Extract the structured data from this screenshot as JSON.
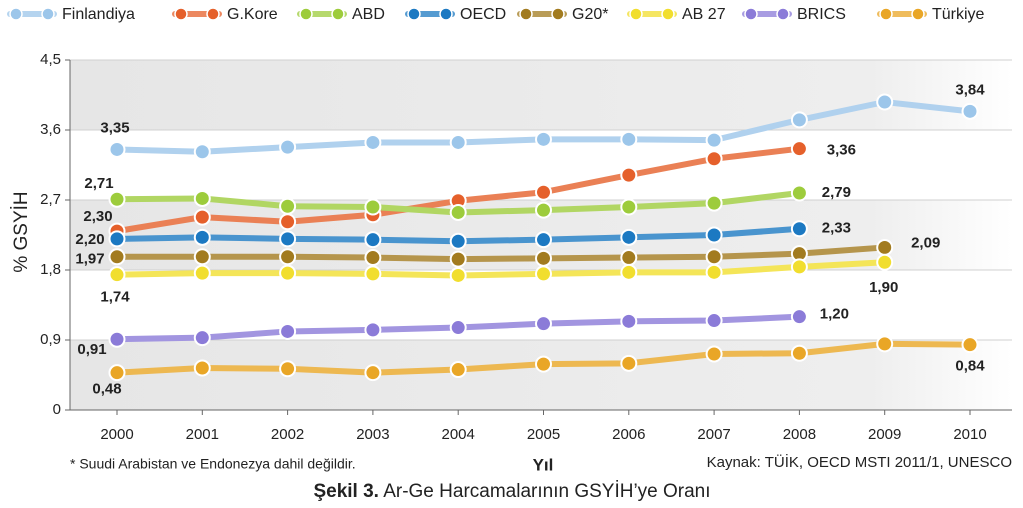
{
  "chart_data": {
    "type": "line",
    "ylabel": "% GSYİH",
    "xlabel": "Yıl",
    "footnote": "* Suudi Arabistan ve Endonezya dahil değildir.",
    "source": "Kaynak: TÜİK, OECD MSTI 2011/1, UNESCO",
    "caption_label": "Şekil 3.",
    "caption_text": "Ar-Ge Harcamalarının GSYİH’ye Oranı",
    "categories": [
      "2000",
      "2001",
      "2002",
      "2003",
      "2004",
      "2005",
      "2006",
      "2007",
      "2008",
      "2009",
      "2010"
    ],
    "ylim": [
      0,
      4.5
    ],
    "yticks": [
      {
        "value": 0,
        "label": "0"
      },
      {
        "value": 0.9,
        "label": "0,9"
      },
      {
        "value": 1.8,
        "label": "1,8"
      },
      {
        "value": 2.7,
        "label": "2,7"
      },
      {
        "value": 3.6,
        "label": "3,6"
      },
      {
        "value": 4.5,
        "label": "4,5"
      }
    ],
    "grid": true,
    "legend": "top",
    "series": [
      {
        "name": "Finlandiya",
        "color": "#9cc6ea",
        "values": [
          3.35,
          3.32,
          3.38,
          3.44,
          3.44,
          3.48,
          3.48,
          3.47,
          3.73,
          3.96,
          3.84
        ],
        "value_labels": [
          "3,35",
          null,
          null,
          null,
          null,
          null,
          null,
          null,
          null,
          null,
          "3,84"
        ]
      },
      {
        "name": "G.Kore",
        "color": "#e5602b",
        "values": [
          2.3,
          2.48,
          2.42,
          2.51,
          2.69,
          2.8,
          3.02,
          3.23,
          3.36,
          null,
          null
        ],
        "value_labels": [
          "2,30",
          null,
          null,
          null,
          null,
          null,
          null,
          null,
          "3,36",
          null,
          null
        ]
      },
      {
        "name": "ABD",
        "color": "#9dcc3c",
        "values": [
          2.71,
          2.72,
          2.62,
          2.61,
          2.54,
          2.57,
          2.61,
          2.66,
          2.79,
          null,
          null
        ],
        "value_labels": [
          "2,71",
          null,
          null,
          null,
          null,
          null,
          null,
          null,
          "2,79",
          null,
          null
        ]
      },
      {
        "name": "OECD",
        "color": "#1c79c2",
        "values": [
          2.2,
          2.22,
          2.2,
          2.19,
          2.17,
          2.19,
          2.22,
          2.25,
          2.33,
          null,
          null
        ],
        "value_labels": [
          "2,20",
          null,
          null,
          null,
          null,
          null,
          null,
          null,
          "2,33",
          null,
          null
        ]
      },
      {
        "name": "G20*",
        "color": "#a27b1f",
        "values": [
          1.97,
          1.97,
          1.97,
          1.96,
          1.94,
          1.95,
          1.96,
          1.97,
          2.01,
          2.09,
          null
        ],
        "value_labels": [
          "1,97",
          null,
          null,
          null,
          null,
          null,
          null,
          null,
          null,
          "2,09",
          null
        ]
      },
      {
        "name": "AB 27",
        "color": "#f1de2e",
        "values": [
          1.74,
          1.76,
          1.76,
          1.75,
          1.73,
          1.75,
          1.77,
          1.77,
          1.84,
          1.9,
          null
        ],
        "value_labels": [
          "1,74",
          null,
          null,
          null,
          null,
          null,
          null,
          null,
          null,
          "1,90",
          null
        ]
      },
      {
        "name": "BRICS",
        "color": "#8b7bd8",
        "values": [
          0.91,
          0.93,
          1.01,
          1.03,
          1.06,
          1.11,
          1.14,
          1.15,
          1.2,
          null,
          null
        ],
        "value_labels": [
          "0,91",
          null,
          null,
          null,
          null,
          null,
          null,
          null,
          "1,20",
          null,
          null
        ]
      },
      {
        "name": "Türkiye",
        "color": "#e9a626",
        "values": [
          0.48,
          0.54,
          0.53,
          0.48,
          0.52,
          0.59,
          0.6,
          0.72,
          0.73,
          0.85,
          0.84
        ],
        "value_labels": [
          "0,48",
          null,
          null,
          null,
          null,
          null,
          null,
          null,
          null,
          null,
          "0,84"
        ]
      }
    ]
  }
}
